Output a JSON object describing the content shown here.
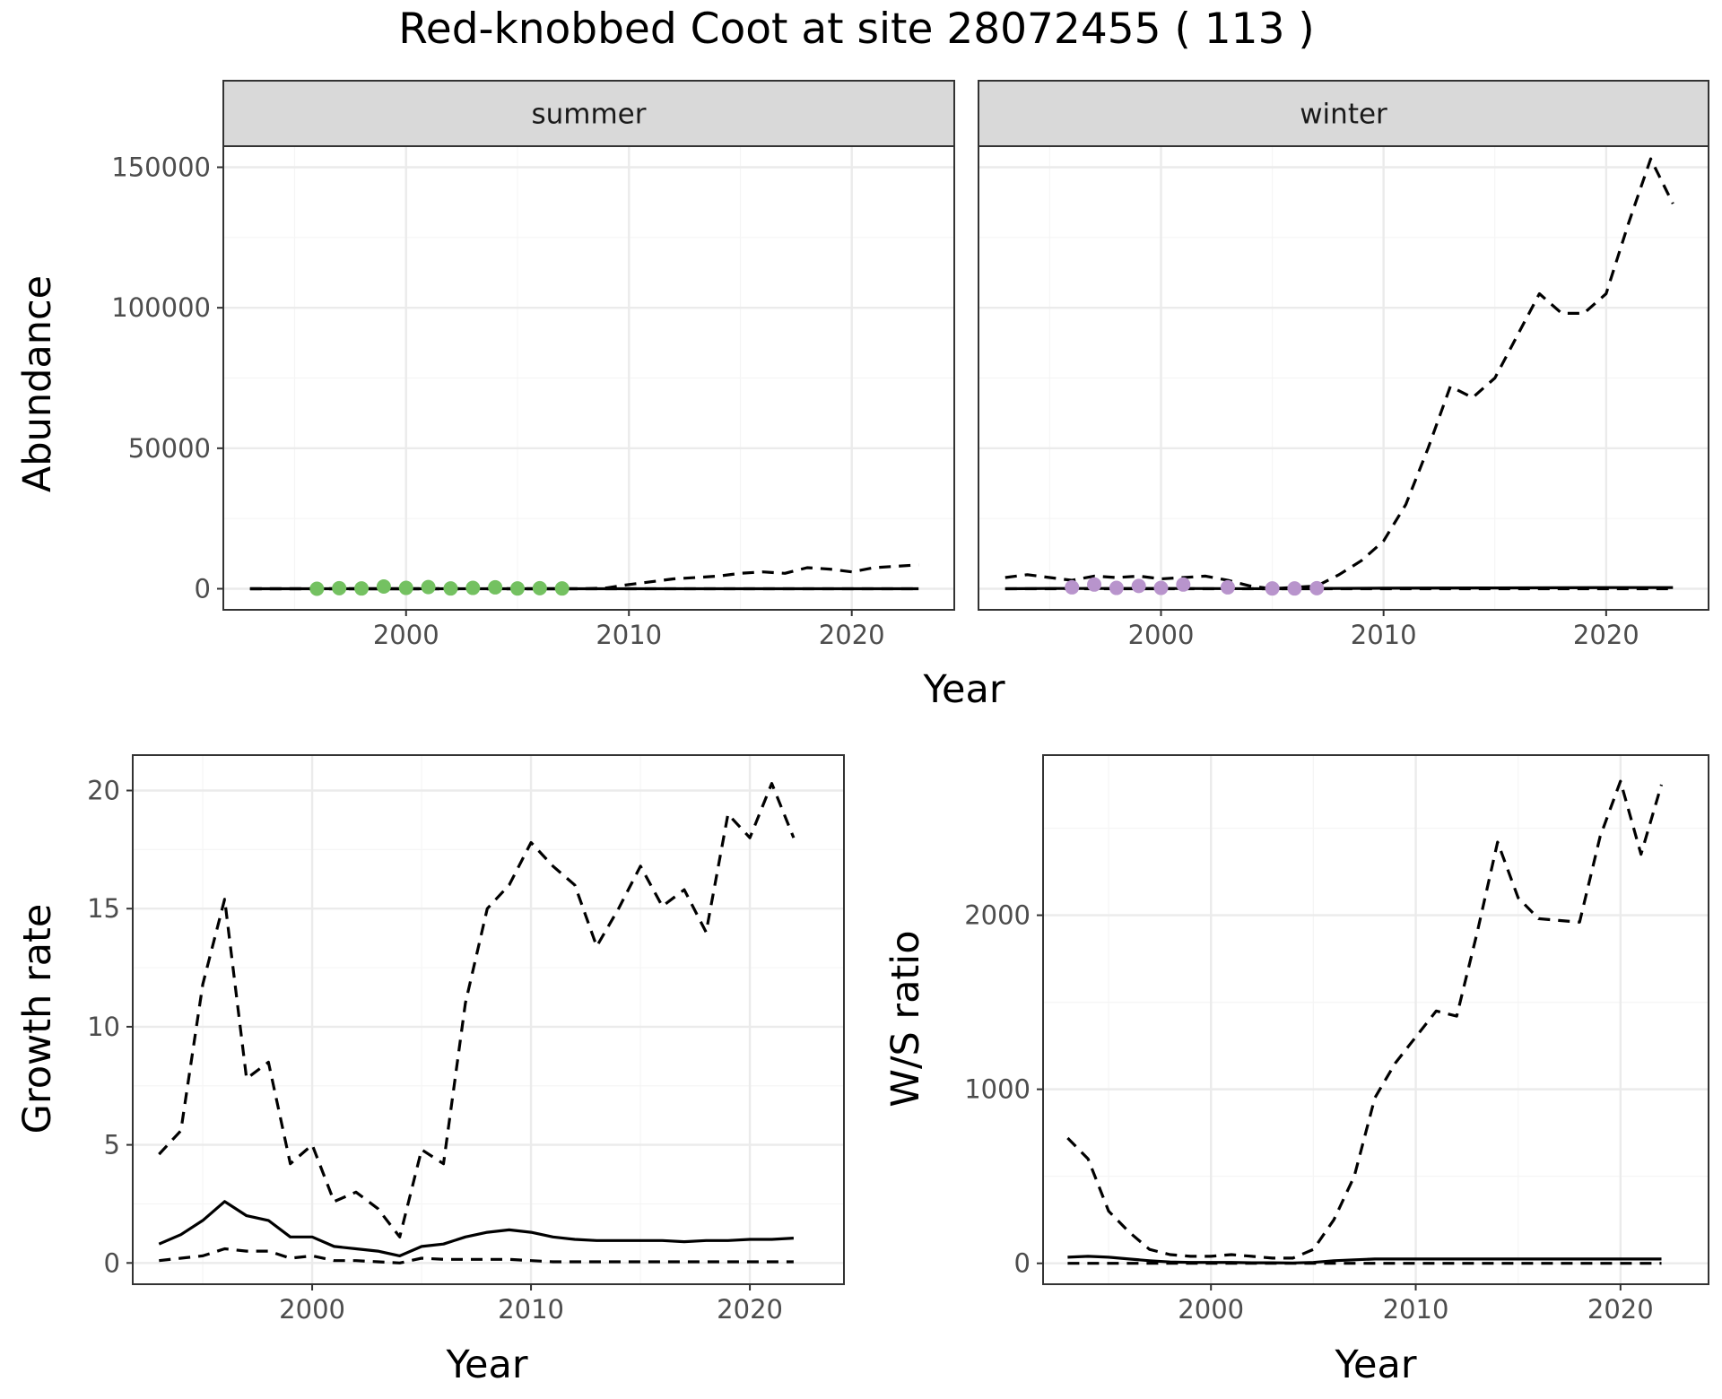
{
  "title": "Red-knobbed Coot at site 28072455 ( 113 )",
  "colors": {
    "summer_points": "#74c161",
    "winter_points": "#b894cc",
    "lines": "#000000",
    "grid_major": "#ebebeb",
    "grid_minor": "#f5f5f5",
    "strip_fill": "#d9d9d9",
    "panel_border": "#333333"
  },
  "chart_data": [
    {
      "type": "line",
      "facet": "summer",
      "strip_label": "summer",
      "ylabel": "Abundance",
      "xlim": [
        1991.8,
        2024.6
      ],
      "ylim": [
        -7500,
        157500
      ],
      "x_ticks": [
        2000,
        2010,
        2020
      ],
      "y_ticks": [
        0,
        50000,
        100000,
        150000
      ],
      "series": [
        {
          "style": "solid",
          "x": [
            1993,
            1995,
            2000,
            2005,
            2010,
            2015,
            2020,
            2023
          ],
          "y": [
            0,
            0,
            0,
            0,
            0,
            0,
            0,
            0
          ]
        },
        {
          "style": "dashed",
          "x": [
            1993,
            1995,
            2000,
            2005,
            2008,
            2009,
            2010,
            2011,
            2012,
            2013,
            2014,
            2015,
            2016,
            2017,
            2018,
            2019,
            2020,
            2021,
            2022,
            2023
          ],
          "y": [
            0,
            0,
            0,
            0,
            0,
            300,
            1500,
            2500,
            3500,
            4000,
            4500,
            5500,
            6000,
            5500,
            7500,
            7000,
            6000,
            7500,
            8000,
            8500
          ]
        },
        {
          "style": "dashed",
          "x": [
            1993,
            2000,
            2010,
            2020,
            2023
          ],
          "y": [
            0,
            0,
            0,
            0,
            0
          ]
        }
      ],
      "points": {
        "x": [
          1996,
          1997,
          1998,
          1999,
          2000,
          2001,
          2002,
          2003,
          2004,
          2005,
          2006,
          2007
        ],
        "y": [
          0,
          200,
          100,
          800,
          300,
          600,
          100,
          300,
          500,
          100,
          200,
          100
        ]
      }
    },
    {
      "type": "line",
      "facet": "winter",
      "strip_label": "winter",
      "xlabel": "Year",
      "xlim": [
        1991.8,
        2024.6
      ],
      "ylim": [
        -7500,
        157500
      ],
      "x_ticks": [
        2000,
        2010,
        2020
      ],
      "y_ticks": [
        0,
        50000,
        100000,
        150000
      ],
      "series": [
        {
          "style": "solid",
          "x": [
            1993,
            1995,
            2000,
            2005,
            2010,
            2015,
            2020,
            2023
          ],
          "y": [
            0,
            100,
            100,
            0,
            200,
            300,
            400,
            400
          ]
        },
        {
          "style": "dashed",
          "x": [
            1993,
            1994,
            1995,
            1996,
            1997,
            1998,
            1999,
            2000,
            2001,
            2002,
            2003,
            2004,
            2005,
            2006,
            2007,
            2008,
            2009,
            2010,
            2011,
            2012,
            2013,
            2014,
            2015,
            2016,
            2017,
            2018,
            2019,
            2020,
            2021,
            2022,
            2023
          ],
          "y": [
            4000,
            5000,
            4000,
            3000,
            4500,
            4000,
            4500,
            3500,
            4000,
            4500,
            3000,
            1000,
            0,
            500,
            1000,
            5000,
            10000,
            17000,
            30000,
            50000,
            72000,
            68000,
            75000,
            90000,
            105000,
            98000,
            98000,
            105000,
            130000,
            153000,
            137000
          ]
        },
        {
          "style": "dashed",
          "x": [
            1993,
            1995,
            2000,
            2005,
            2010,
            2015,
            2020,
            2023
          ],
          "y": [
            0,
            0,
            0,
            0,
            0,
            0,
            0,
            0
          ]
        }
      ],
      "points": {
        "x": [
          1996,
          1997,
          1998,
          1999,
          2000,
          2001,
          2003,
          2005,
          2006,
          2007
        ],
        "y": [
          500,
          1500,
          300,
          1000,
          300,
          1500,
          500,
          100,
          100,
          200
        ]
      }
    },
    {
      "type": "line",
      "panel": "growth",
      "xlabel": "Year",
      "ylabel": "Growth rate",
      "xlim": [
        1991.8,
        2024.3
      ],
      "ylim": [
        -0.9,
        21.5
      ],
      "x_ticks": [
        2000,
        2010,
        2020
      ],
      "y_ticks": [
        0,
        5,
        10,
        15,
        20
      ],
      "series": [
        {
          "style": "solid",
          "x": [
            1993,
            1994,
            1995,
            1996,
            1997,
            1998,
            1999,
            2000,
            2001,
            2002,
            2003,
            2004,
            2005,
            2006,
            2007,
            2008,
            2009,
            2010,
            2011,
            2012,
            2013,
            2014,
            2015,
            2016,
            2017,
            2018,
            2019,
            2020,
            2021,
            2022
          ],
          "y": [
            0.8,
            1.2,
            1.8,
            2.6,
            2.0,
            1.8,
            1.1,
            1.1,
            0.7,
            0.6,
            0.5,
            0.3,
            0.7,
            0.8,
            1.1,
            1.3,
            1.4,
            1.3,
            1.1,
            1.0,
            0.95,
            0.95,
            0.95,
            0.95,
            0.9,
            0.95,
            0.95,
            1.0,
            1.0,
            1.05
          ]
        },
        {
          "style": "dashed",
          "x": [
            1993,
            1994,
            1995,
            1996,
            1997,
            1998,
            1999,
            2000,
            2001,
            2002,
            2003,
            2004,
            2005,
            2006,
            2007,
            2008,
            2009,
            2010,
            2011,
            2012,
            2013,
            2014,
            2015,
            2016,
            2017,
            2018,
            2019,
            2020,
            2021,
            2022
          ],
          "y": [
            4.6,
            5.6,
            11.8,
            15.4,
            7.8,
            8.5,
            4.2,
            5.0,
            2.6,
            3.0,
            2.3,
            1.1,
            4.8,
            4.2,
            11.0,
            15.0,
            16.0,
            17.8,
            16.8,
            16.0,
            13.4,
            15.0,
            16.8,
            15.1,
            15.8,
            14.0,
            19.0,
            18.0,
            20.3,
            18.0
          ]
        },
        {
          "style": "dashed",
          "x": [
            1993,
            1994,
            1995,
            1996,
            1997,
            1998,
            1999,
            2000,
            2001,
            2002,
            2003,
            2004,
            2005,
            2006,
            2007,
            2008,
            2009,
            2010,
            2011,
            2012,
            2013,
            2014,
            2015,
            2016,
            2017,
            2018,
            2019,
            2020,
            2021,
            2022
          ],
          "y": [
            0.1,
            0.2,
            0.3,
            0.6,
            0.5,
            0.5,
            0.2,
            0.3,
            0.1,
            0.1,
            0.05,
            0.0,
            0.2,
            0.15,
            0.15,
            0.15,
            0.15,
            0.1,
            0.05,
            0.05,
            0.05,
            0.05,
            0.05,
            0.05,
            0.05,
            0.05,
            0.05,
            0.05,
            0.05,
            0.05
          ]
        }
      ]
    },
    {
      "type": "line",
      "panel": "ratio",
      "xlabel": "Year",
      "ylabel": "W/S ratio",
      "xlim": [
        1991.8,
        2024.3
      ],
      "ylim": [
        -120,
        2920
      ],
      "x_ticks": [
        2000,
        2010,
        2020
      ],
      "y_ticks": [
        0,
        1000,
        2000
      ],
      "series": [
        {
          "style": "solid",
          "x": [
            1993,
            1994,
            1995,
            1996,
            1997,
            1998,
            1999,
            2000,
            2001,
            2002,
            2003,
            2004,
            2005,
            2006,
            2007,
            2008,
            2009,
            2010,
            2011,
            2012,
            2013,
            2014,
            2015,
            2016,
            2017,
            2018,
            2019,
            2020,
            2021,
            2022
          ],
          "y": [
            35,
            40,
            35,
            25,
            15,
            8,
            5,
            5,
            5,
            3,
            3,
            2,
            5,
            15,
            20,
            25,
            25,
            25,
            25,
            25,
            25,
            25,
            25,
            25,
            25,
            25,
            25,
            25,
            25,
            25
          ]
        },
        {
          "style": "dashed",
          "x": [
            1993,
            1994,
            1995,
            1996,
            1997,
            1998,
            1999,
            2000,
            2001,
            2002,
            2003,
            2004,
            2005,
            2006,
            2007,
            2008,
            2009,
            2010,
            2011,
            2012,
            2013,
            2014,
            2015,
            2016,
            2017,
            2018,
            2019,
            2020,
            2021,
            2022
          ],
          "y": [
            720,
            600,
            300,
            180,
            80,
            50,
            40,
            40,
            50,
            40,
            30,
            30,
            80,
            250,
            500,
            950,
            1150,
            1300,
            1450,
            1420,
            1900,
            2420,
            2100,
            1980,
            1970,
            1960,
            2450,
            2770,
            2350,
            2750
          ]
        },
        {
          "style": "dashed",
          "x": [
            1993,
            1995,
            2000,
            2005,
            2010,
            2015,
            2020,
            2022
          ],
          "y": [
            0,
            0,
            0,
            0,
            0,
            0,
            0,
            0
          ]
        }
      ]
    }
  ]
}
